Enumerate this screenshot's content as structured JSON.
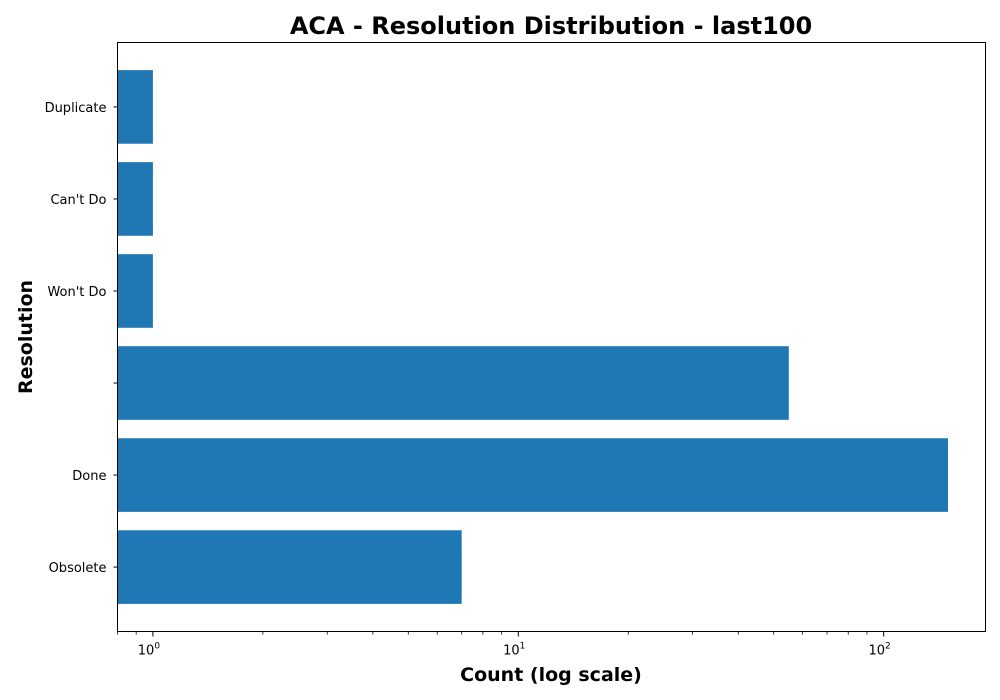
{
  "chart_data": {
    "type": "bar",
    "orientation": "horizontal",
    "title": "ACA - Resolution Distribution - last100",
    "xlabel": "Count (log scale)",
    "ylabel": "Resolution",
    "x_scale": "log",
    "xlim": [
      0.8,
      190
    ],
    "x_ticks": [
      {
        "value": 1,
        "base": "10",
        "exp": "0"
      },
      {
        "value": 10,
        "base": "10",
        "exp": "1"
      },
      {
        "value": 100,
        "base": "10",
        "exp": "2"
      }
    ],
    "categories": [
      "Obsolete",
      "Done",
      "",
      "Won't Do",
      "Can't Do",
      "Duplicate"
    ],
    "values": [
      7,
      150,
      55,
      1,
      1,
      1
    ],
    "bar_color": "#1f77b4",
    "grid": false
  }
}
